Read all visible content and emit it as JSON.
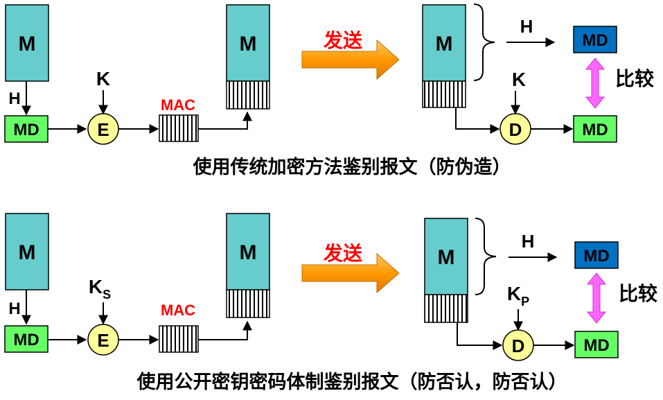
{
  "colors": {
    "message_fill": "#66CCCC",
    "md_green": "#66FF66",
    "md_blue": "#0070C0",
    "crypto_circle": "#FFFF99",
    "send_arrow": "#FF9900",
    "red_text": "#FF0000",
    "compare_arrow": "#FF66FF"
  },
  "top": {
    "message": "M",
    "hash": "H",
    "digest": "MD",
    "key": "K",
    "encrypt": "E",
    "mac": "MAC",
    "message_copy": "M",
    "send": "发送",
    "recv_message": "M",
    "recv_hash": "H",
    "recv_digest": "MD",
    "compare": "比较",
    "recv_key": "K",
    "decrypt": "D",
    "decrypted_digest": "MD",
    "caption": "使用传统加密方法鉴别报文（防伪造）"
  },
  "bottom": {
    "message": "M",
    "hash": "H",
    "digest": "MD",
    "key": "K",
    "key_sub": "S",
    "encrypt": "E",
    "mac": "MAC",
    "message_copy": "M",
    "send": "发送",
    "recv_message": "M",
    "recv_hash": "H",
    "recv_digest": "MD",
    "compare": "比较",
    "recv_key": "K",
    "recv_key_sub": "P",
    "decrypt": "D",
    "decrypted_digest": "MD",
    "caption": "使用公开密钥密码体制鉴别报文（防否认，防否认）"
  }
}
